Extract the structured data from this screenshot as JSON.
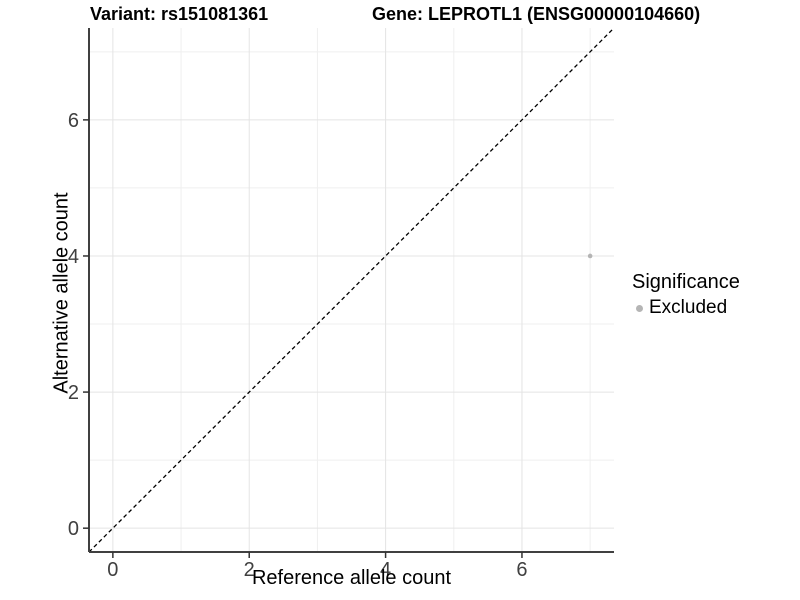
{
  "titles": {
    "left": "Variant: rs151081361",
    "right": "Gene: LEPROTL1 (ENSG00000104660)"
  },
  "chart_data": {
    "type": "scatter",
    "title": "Variant: rs151081361   Gene: LEPROTL1 (ENSG00000104660)",
    "xlabel": "Reference allele count",
    "ylabel": "Alternative allele count",
    "xlim": [
      -0.35,
      7.35
    ],
    "ylim": [
      -0.35,
      7.35
    ],
    "x_major_ticks": [
      0,
      2,
      4,
      6
    ],
    "y_major_ticks": [
      0,
      2,
      4,
      6
    ],
    "x_minor_gridlines": [
      1,
      3,
      5,
      7
    ],
    "y_minor_gridlines": [
      1,
      3,
      5,
      7
    ],
    "grid": true,
    "points": [
      {
        "x": 7,
        "y": 4,
        "series": "Excluded"
      }
    ],
    "reference_line": {
      "kind": "identity",
      "slope": 1,
      "intercept": 0,
      "style": "dashed",
      "color": "#000000"
    },
    "legend": {
      "title": "Significance",
      "position": "right",
      "items": [
        {
          "label": "Excluded",
          "color": "#b5b5b5"
        }
      ]
    },
    "colors": {
      "background": "#ffffff",
      "point": "#b5b5b5",
      "grid_major": "#e4e4e4",
      "grid_minor": "#efefef",
      "axis_line": "#404040",
      "tick": "#333333",
      "tick_label": "#404040"
    }
  }
}
